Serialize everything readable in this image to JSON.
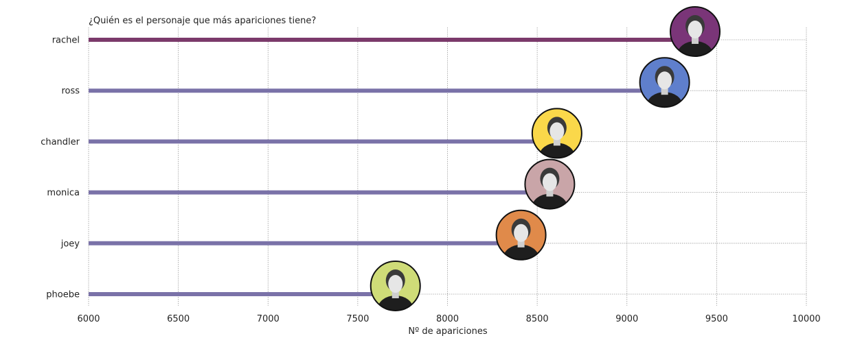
{
  "chart_data": {
    "type": "bar",
    "orientation": "horizontal",
    "title": "¿Quién es el personaje que más apariciones tiene?",
    "xlabel": "Nº de apariciones",
    "ylabel": "",
    "xlim": [
      6000,
      10000
    ],
    "xticks": [
      6000,
      6500,
      7000,
      7500,
      8000,
      8500,
      9000,
      9500,
      10000
    ],
    "grid": true,
    "categories": [
      "rachel",
      "ross",
      "chandler",
      "monica",
      "joey",
      "phoebe"
    ],
    "values": [
      9380,
      9210,
      8610,
      8570,
      8410,
      7710
    ],
    "bar_colors": [
      "#7b3a6b",
      "#7a72a8",
      "#7a72a8",
      "#7a72a8",
      "#7a72a8",
      "#7a72a8"
    ],
    "avatar_colors": [
      "#7a3578",
      "#5f7fcc",
      "#fad84a",
      "#c9a5a8",
      "#e08a4a",
      "#cfdc78"
    ],
    "avatar_icons": [
      "rachel-portrait-icon",
      "ross-portrait-icon",
      "chandler-portrait-icon",
      "monica-portrait-icon",
      "joey-portrait-icon",
      "phoebe-portrait-icon"
    ]
  }
}
